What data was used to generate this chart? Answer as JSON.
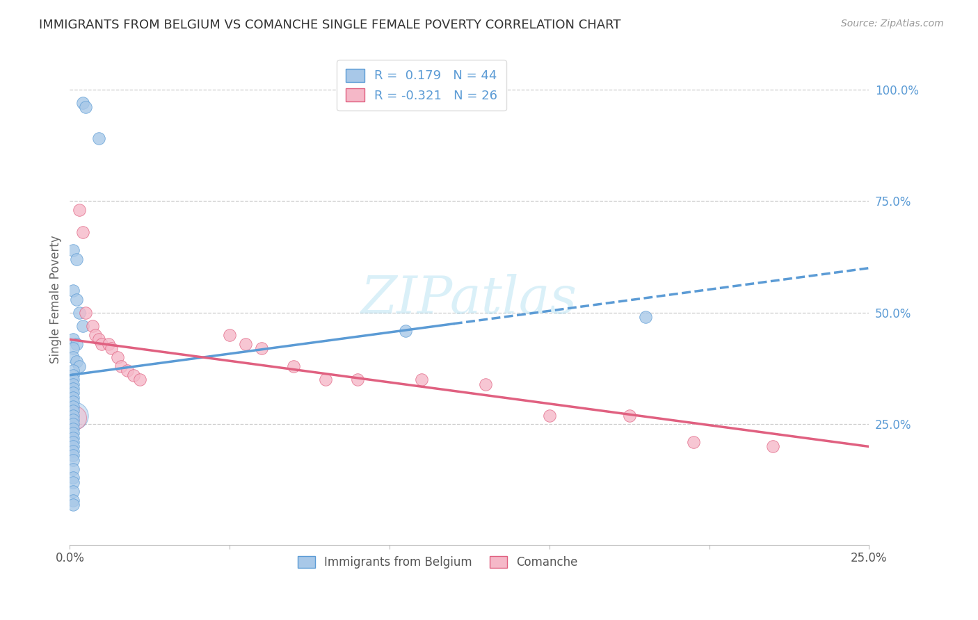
{
  "title": "IMMIGRANTS FROM BELGIUM VS COMANCHE SINGLE FEMALE POVERTY CORRELATION CHART",
  "source": "Source: ZipAtlas.com",
  "ylabel": "Single Female Poverty",
  "right_yticks": [
    "100.0%",
    "75.0%",
    "50.0%",
    "25.0%"
  ],
  "right_ytick_vals": [
    1.0,
    0.75,
    0.5,
    0.25
  ],
  "xlim": [
    0.0,
    0.25
  ],
  "ylim": [
    -0.02,
    1.08
  ],
  "blue_color": "#a8c8e8",
  "pink_color": "#f5b8c8",
  "trendline_blue": "#5b9bd5",
  "trendline_pink": "#e06080",
  "watermark": "ZIPatlas",
  "legend_label1": "R =  0.179   N = 44",
  "legend_label2": "R = -0.321   N = 26",
  "bottom_label1": "Immigrants from Belgium",
  "bottom_label2": "Comanche",
  "belgium_x": [
    0.004,
    0.005,
    0.009,
    0.001,
    0.002,
    0.001,
    0.002,
    0.003,
    0.004,
    0.001,
    0.002,
    0.001,
    0.001,
    0.002,
    0.003,
    0.001,
    0.001,
    0.001,
    0.001,
    0.001,
    0.001,
    0.001,
    0.001,
    0.001,
    0.001,
    0.001,
    0.001,
    0.001,
    0.001,
    0.001,
    0.001,
    0.001,
    0.001,
    0.001,
    0.001,
    0.001,
    0.001,
    0.001,
    0.001,
    0.001,
    0.001,
    0.001,
    0.105,
    0.18
  ],
  "belgium_y": [
    0.97,
    0.96,
    0.89,
    0.64,
    0.62,
    0.55,
    0.53,
    0.5,
    0.47,
    0.44,
    0.43,
    0.42,
    0.4,
    0.39,
    0.38,
    0.37,
    0.36,
    0.35,
    0.34,
    0.33,
    0.32,
    0.31,
    0.3,
    0.29,
    0.28,
    0.27,
    0.26,
    0.25,
    0.24,
    0.23,
    0.22,
    0.21,
    0.2,
    0.19,
    0.18,
    0.17,
    0.15,
    0.13,
    0.12,
    0.1,
    0.08,
    0.07,
    0.46,
    0.49
  ],
  "comanche_x": [
    0.003,
    0.004,
    0.005,
    0.007,
    0.008,
    0.009,
    0.01,
    0.012,
    0.013,
    0.015,
    0.016,
    0.018,
    0.02,
    0.022,
    0.05,
    0.055,
    0.06,
    0.07,
    0.08,
    0.09,
    0.11,
    0.13,
    0.15,
    0.175,
    0.195,
    0.22
  ],
  "comanche_y": [
    0.73,
    0.68,
    0.5,
    0.47,
    0.45,
    0.44,
    0.43,
    0.43,
    0.42,
    0.4,
    0.38,
    0.37,
    0.36,
    0.35,
    0.45,
    0.43,
    0.42,
    0.38,
    0.35,
    0.35,
    0.35,
    0.34,
    0.27,
    0.27,
    0.21,
    0.2
  ],
  "trendline_blue_x0": 0.0,
  "trendline_blue_y0": 0.36,
  "trendline_blue_x1": 0.25,
  "trendline_blue_y1": 0.6,
  "trendline_pink_x0": 0.0,
  "trendline_pink_y0": 0.44,
  "trendline_pink_x1": 0.25,
  "trendline_pink_y1": 0.2,
  "trendline_dash_x0": 0.12,
  "trendline_dash_y0": 0.475,
  "trendline_dash_x1": 0.25,
  "trendline_dash_y1": 0.6
}
